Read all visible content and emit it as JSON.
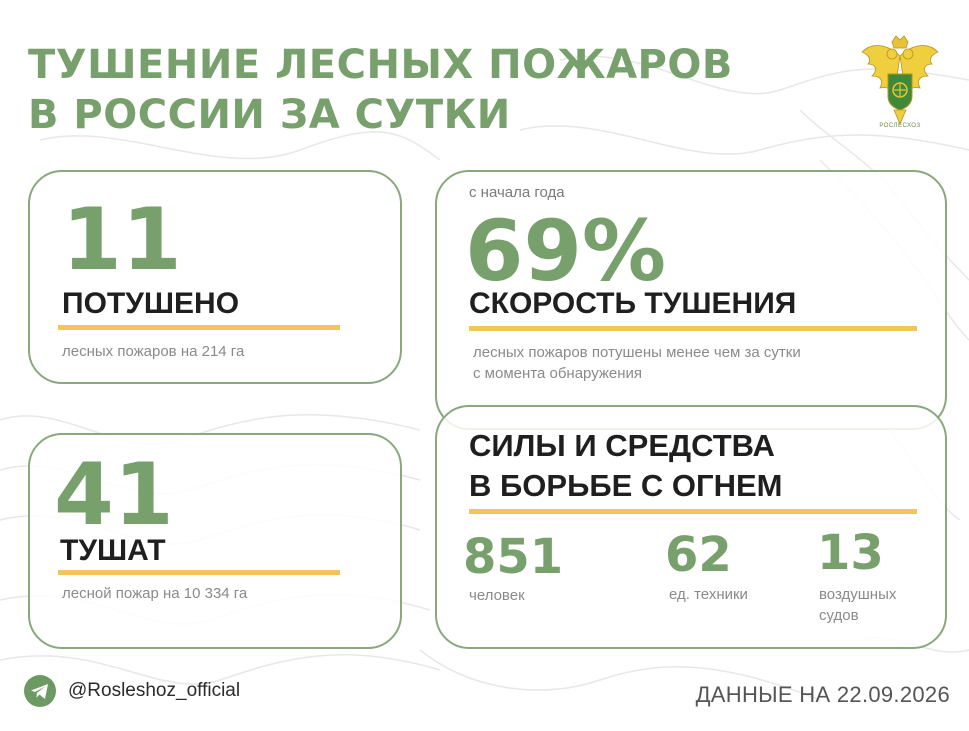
{
  "header": {
    "title_line1": "ТУШЕНИЕ ЛЕСНЫХ ПОЖАРОВ",
    "title_line2": "В РОССИИ ЗА СУТКИ",
    "emblem_caption": "РОСЛЕСХОЗ",
    "emblem_icon": "russian-eagle-emblem-icon"
  },
  "extinguished": {
    "number": "11",
    "label": "ПОТУШЕНО",
    "note": "лесных пожаров на 214 га"
  },
  "fighting": {
    "number": "41",
    "label": "ТУШАТ",
    "note": "лесной пожар на  10 334 га"
  },
  "speed": {
    "caption": "с начала года",
    "percent": "69%",
    "label": "СКОРОСТЬ ТУШЕНИЯ",
    "note_line1": "лесных пожаров потушены менее чем за сутки",
    "note_line2": "с момента обнаружения"
  },
  "forces": {
    "title_line1": "СИЛЫ И СРЕДСТВА",
    "title_line2": "В БОРЬБЕ С ОГНЕМ",
    "people": {
      "value": "851",
      "unit": "человек"
    },
    "vehicles": {
      "value": "62",
      "unit": "ед. техники"
    },
    "aircraft": {
      "value": "13",
      "unit_line1": "воздушных",
      "unit_line2": "судов"
    }
  },
  "footer": {
    "handle": "@Rosleshoz_official",
    "date": "ДАННЫЕ НА 22.09.2026",
    "telegram_icon": "telegram-icon"
  },
  "colors": {
    "accent_green": "#78a06c",
    "card_border": "#8aa87c",
    "highlight_bar": "#f0c65a",
    "telegram_icon": "#6b9a62"
  }
}
